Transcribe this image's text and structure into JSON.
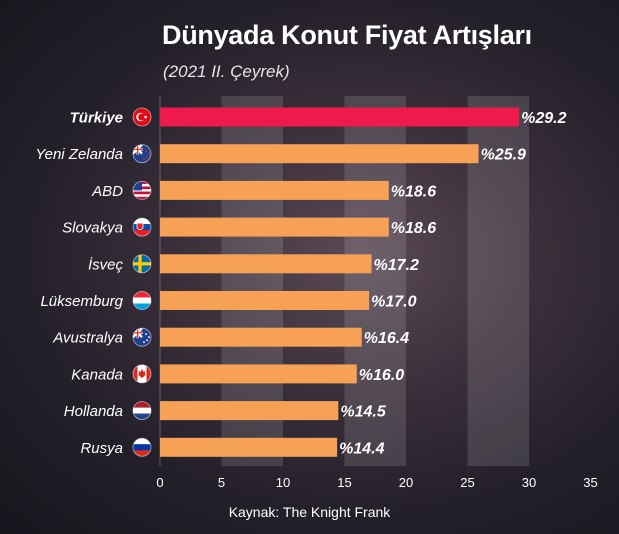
{
  "chart_data": {
    "type": "bar",
    "orientation": "horizontal",
    "title": "Dünyada Konut Fiyat Artışları",
    "subtitle": "(2021 II. Çeyrek)",
    "source": "Kaynak: The Knight Frank",
    "categories": [
      "Türkiye",
      "Yeni Zelanda",
      "ABD",
      "Slovakya",
      "İsveç",
      "Lüksemburg",
      "Avustralya",
      "Kanada",
      "Hollanda",
      "Rusya"
    ],
    "values": [
      29.2,
      25.9,
      18.6,
      18.6,
      17.2,
      17.0,
      16.4,
      16.0,
      14.5,
      14.4
    ],
    "value_labels": [
      "%29.2",
      "%25.9",
      "%18.6",
      "%18.6",
      "%17.2",
      "%17.0",
      "%16.4",
      "%16.0",
      "%14.5",
      "%14.4"
    ],
    "flags": [
      "turkey-flag-icon",
      "new-zealand-flag-icon",
      "usa-flag-icon",
      "slovakia-flag-icon",
      "sweden-flag-icon",
      "luxembourg-flag-icon",
      "australia-flag-icon",
      "canada-flag-icon",
      "netherlands-flag-icon",
      "russia-flag-icon"
    ],
    "highlight_index": 0,
    "xlim": [
      0,
      35
    ],
    "xticks": [
      "0",
      "5",
      "10",
      "15",
      "20",
      "25",
      "30",
      "35"
    ],
    "grid": "alternating vertical bands",
    "colors": {
      "highlight": "#ee1a4c",
      "bar": "#f7a156",
      "text": "#ffffff"
    }
  }
}
